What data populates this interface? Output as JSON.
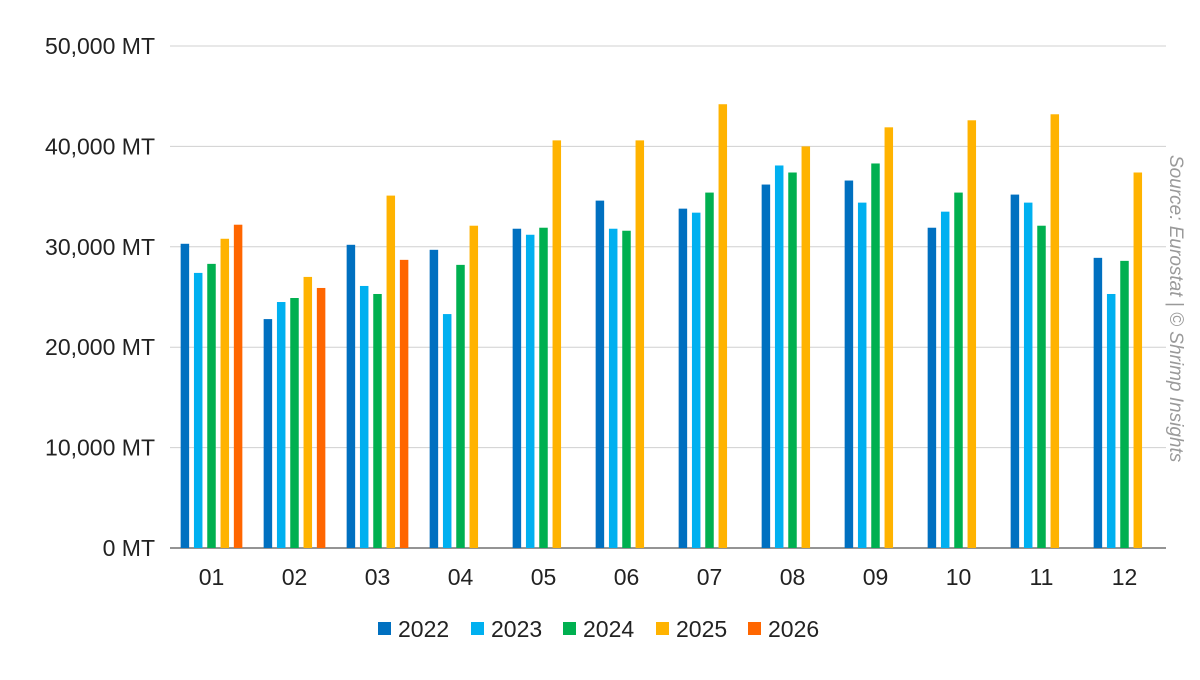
{
  "chart_data": {
    "type": "bar",
    "categories": [
      "01",
      "02",
      "03",
      "04",
      "05",
      "06",
      "07",
      "08",
      "09",
      "10",
      "11",
      "12"
    ],
    "series": [
      {
        "name": "2022",
        "color": "#0070C0",
        "values": [
          30300,
          22800,
          30200,
          29700,
          31800,
          34600,
          33800,
          36200,
          36600,
          31900,
          35200,
          28900
        ]
      },
      {
        "name": "2023",
        "color": "#00B0F0",
        "values": [
          27400,
          24500,
          26100,
          23300,
          31200,
          31800,
          33400,
          38100,
          34400,
          33500,
          34400,
          25300
        ]
      },
      {
        "name": "2024",
        "color": "#00B050",
        "values": [
          28300,
          24900,
          25300,
          28200,
          31900,
          31600,
          35400,
          37400,
          38300,
          35400,
          32100,
          28600
        ]
      },
      {
        "name": "2025",
        "color": "#FFB300",
        "values": [
          30800,
          27000,
          35100,
          32100,
          40600,
          40600,
          44200,
          40000,
          41900,
          42600,
          43200,
          37400
        ]
      },
      {
        "name": "2026",
        "color": "#FF6600",
        "values": [
          32200,
          25900,
          28700,
          null,
          null,
          null,
          null,
          null,
          null,
          null,
          null,
          null
        ]
      }
    ],
    "ylim": [
      0,
      50000
    ],
    "y_ticks": [
      0,
      10000,
      20000,
      30000,
      40000,
      50000
    ],
    "y_tick_labels": [
      "0 MT",
      "10,000 MT",
      "20,000 MT",
      "30,000 MT",
      "40,000 MT",
      "50,000 MT"
    ],
    "grid": true,
    "legend_position": "bottom",
    "annotation": "Source: Eurostat | © Shrimp Insights"
  }
}
